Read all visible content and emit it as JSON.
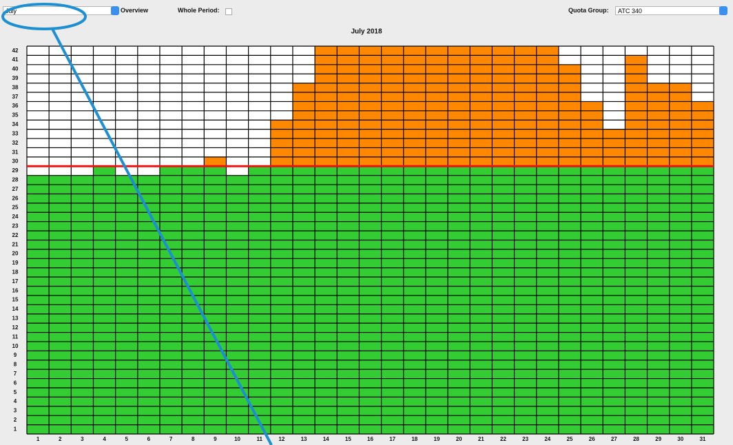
{
  "toolbar": {
    "month": "July",
    "overview": "Overview",
    "whole_period": "Whole Period:",
    "quota_group_label": "Quota Group:",
    "quota_group": "ATC 340"
  },
  "chart": {
    "title": "July 2018",
    "days": [
      1,
      2,
      3,
      4,
      5,
      6,
      7,
      8,
      9,
      10,
      11,
      12,
      13,
      14,
      15,
      16,
      17,
      18,
      19,
      20,
      21,
      22,
      23,
      24,
      25,
      26,
      27,
      28,
      29,
      30,
      31
    ],
    "rows": [
      1,
      2,
      3,
      4,
      5,
      6,
      7,
      8,
      9,
      10,
      11,
      12,
      13,
      14,
      15,
      16,
      17,
      18,
      19,
      20,
      21,
      22,
      23,
      24,
      25,
      26,
      27,
      28,
      29,
      30,
      31,
      32,
      33,
      34,
      35,
      36,
      37,
      38,
      39,
      40,
      41,
      42
    ],
    "occupancy": [
      28,
      28,
      28,
      29,
      28,
      28,
      29,
      29,
      30,
      28,
      29,
      34,
      38,
      42,
      42,
      42,
      42,
      42,
      42,
      42,
      42,
      42,
      42,
      42,
      40,
      36,
      33,
      41,
      38,
      38,
      36
    ],
    "quota": 29,
    "colors": {
      "within": "#33cc33",
      "over": "#ff8800",
      "empty": "#ffffff",
      "quota_line": "#ee1111"
    }
  }
}
